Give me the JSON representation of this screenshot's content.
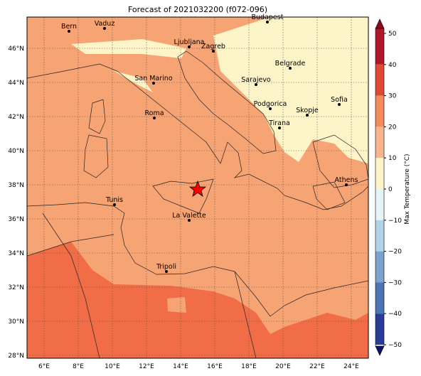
{
  "title": "Forecast of 2021032200 (f072-096)",
  "map": {
    "lon_labels": [
      "6°E",
      "8°E",
      "10°E",
      "12°E",
      "14°E",
      "16°E",
      "18°E",
      "20°E",
      "22°E",
      "24°E"
    ],
    "lat_labels": [
      "46°N",
      "44°N",
      "42°N",
      "40°N",
      "38°N",
      "36°N",
      "34°N",
      "32°N",
      "30°N",
      "28°N"
    ],
    "cities": [
      {
        "label": "Bern"
      },
      {
        "label": "Vaduz"
      },
      {
        "label": "Budapest"
      },
      {
        "label": "Ljubljana"
      },
      {
        "label": "Zagreb"
      },
      {
        "label": "Belgrade"
      },
      {
        "label": "Sarajevo"
      },
      {
        "label": "San Marino"
      },
      {
        "label": "Sofia"
      },
      {
        "label": "Podgorica"
      },
      {
        "label": "Skopje"
      },
      {
        "label": "Roma"
      },
      {
        "label": "Tirana"
      },
      {
        "label": "Athens"
      },
      {
        "label": "Tunis"
      },
      {
        "label": "La Valette"
      },
      {
        "label": "Tripoli"
      }
    ]
  },
  "colorbar": {
    "label": "Max Temperature (°C)",
    "ticks": [
      "50",
      "40",
      "30",
      "20",
      "10",
      "0",
      "−10",
      "−20",
      "−30",
      "−40",
      "−50"
    ]
  }
}
